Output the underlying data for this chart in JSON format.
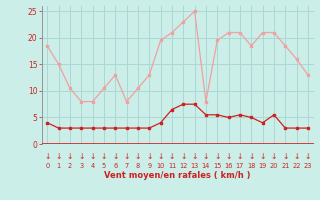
{
  "x": [
    0,
    1,
    2,
    3,
    4,
    5,
    6,
    7,
    8,
    9,
    10,
    11,
    12,
    13,
    14,
    15,
    16,
    17,
    18,
    19,
    20,
    21,
    22,
    23
  ],
  "rafales": [
    18.5,
    15,
    10.5,
    8,
    8,
    10.5,
    13,
    8,
    10.5,
    13,
    19.5,
    21,
    23,
    25,
    8,
    19.5,
    21,
    21,
    18.5,
    21,
    21,
    18.5,
    16,
    13
  ],
  "moyen": [
    4,
    3,
    3,
    3,
    3,
    3,
    3,
    3,
    3,
    3,
    4,
    6.5,
    7.5,
    7.5,
    5.5,
    5.5,
    5,
    5.5,
    5,
    4,
    5.5,
    3,
    3,
    3
  ],
  "bg_color": "#cceee8",
  "grid_color": "#aad8d4",
  "line_rafales_color": "#f0a0a0",
  "line_moyen_color": "#cc2222",
  "xlabel": "Vent moyen/en rafales ( km/h )",
  "ylabel_ticks": [
    0,
    5,
    10,
    15,
    20,
    25
  ],
  "ylim": [
    0,
    26
  ],
  "xlim": [
    -0.5,
    23.5
  ],
  "tick_color": "#cc2222",
  "xlabel_color": "#cc2222",
  "arrow_color": "#cc2222",
  "spine_color": "#888888"
}
